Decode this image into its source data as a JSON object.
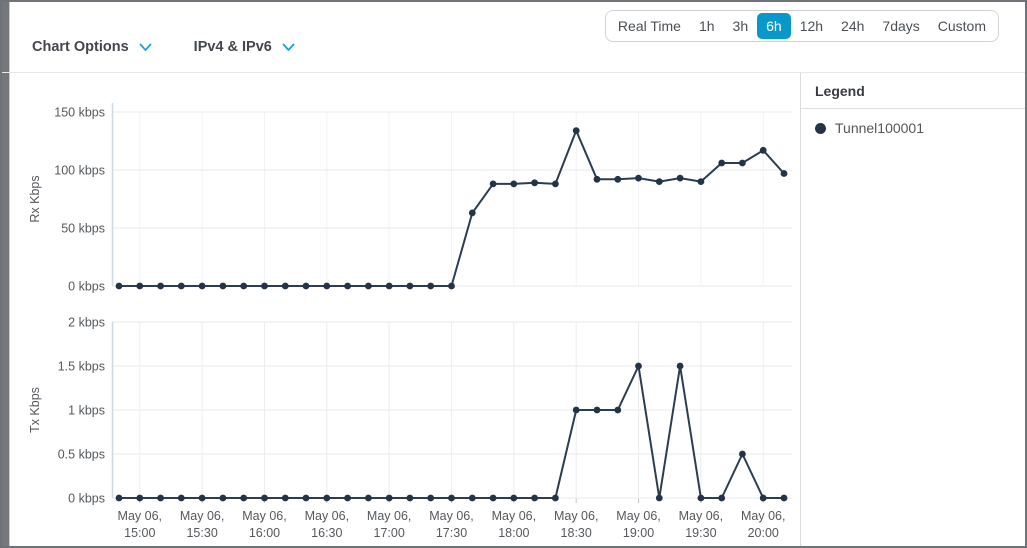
{
  "header": {
    "chart_options_label": "Chart Options",
    "ip_filter_label": "IPv4 & IPv6",
    "time_ranges": [
      "Real Time",
      "1h",
      "3h",
      "6h",
      "12h",
      "24h",
      "7days",
      "Custom"
    ],
    "selected_time_range": "6h"
  },
  "legend": {
    "title": "Legend",
    "items": [
      {
        "label": "Tunnel100001",
        "color": "#233447"
      }
    ]
  },
  "colors": {
    "accent_blue": "#0a98cb",
    "chevron_blue": "#14a6d4",
    "series_line": "#2b3d4f",
    "series_dot": "#233447"
  },
  "chart_data": [
    {
      "type": "line",
      "title": "",
      "ylabel": "Rx Kbps",
      "xlabel": "",
      "ylim": [
        0,
        150
      ],
      "yticks": [
        0,
        50,
        100,
        150
      ],
      "ytick_labels": [
        "0 kbps",
        "50 kbps",
        "100 kbps",
        "150 kbps"
      ],
      "grid": true,
      "legend_position": "right-panel",
      "xtick_prefix": "May 06,",
      "xticks": [
        "15:00",
        "15:30",
        "16:00",
        "16:30",
        "17:00",
        "17:30",
        "18:00",
        "18:30",
        "19:00",
        "19:30",
        "20:00"
      ],
      "x": [
        "14:50",
        "15:00",
        "15:10",
        "15:20",
        "15:30",
        "15:40",
        "15:50",
        "16:00",
        "16:10",
        "16:20",
        "16:30",
        "16:40",
        "16:50",
        "17:00",
        "17:10",
        "17:20",
        "17:30",
        "17:40",
        "17:50",
        "18:00",
        "18:10",
        "18:20",
        "18:30",
        "18:40",
        "18:50",
        "19:00",
        "19:10",
        "19:20",
        "19:30",
        "19:40",
        "19:50",
        "20:00",
        "20:10"
      ],
      "series": [
        {
          "name": "Tunnel100001",
          "values": [
            0,
            0,
            0,
            0,
            0,
            0,
            0,
            0,
            0,
            0,
            0,
            0,
            0,
            0,
            0,
            0,
            0,
            63,
            88,
            88,
            89,
            88,
            134,
            92,
            92,
            93,
            90,
            93,
            90,
            106,
            106,
            117,
            97
          ]
        }
      ]
    },
    {
      "type": "line",
      "title": "",
      "ylabel": "Tx Kbps",
      "xlabel": "",
      "ylim": [
        0,
        2
      ],
      "yticks": [
        0,
        0.5,
        1,
        1.5,
        2
      ],
      "ytick_labels": [
        "0 kbps",
        "0.5 kbps",
        "1 kbps",
        "1.5 kbps",
        "2 kbps"
      ],
      "grid": true,
      "legend_position": "right-panel",
      "xtick_prefix": "May 06,",
      "xticks": [
        "15:00",
        "15:30",
        "16:00",
        "16:30",
        "17:00",
        "17:30",
        "18:00",
        "18:30",
        "19:00",
        "19:30",
        "20:00"
      ],
      "x": [
        "14:50",
        "15:00",
        "15:10",
        "15:20",
        "15:30",
        "15:40",
        "15:50",
        "16:00",
        "16:10",
        "16:20",
        "16:30",
        "16:40",
        "16:50",
        "17:00",
        "17:10",
        "17:20",
        "17:30",
        "17:40",
        "17:50",
        "18:00",
        "18:10",
        "18:20",
        "18:30",
        "18:40",
        "18:50",
        "19:00",
        "19:10",
        "19:20",
        "19:30",
        "19:40",
        "19:50",
        "20:00",
        "20:10"
      ],
      "series": [
        {
          "name": "Tunnel100001",
          "values": [
            0,
            0,
            0,
            0,
            0,
            0,
            0,
            0,
            0,
            0,
            0,
            0,
            0,
            0,
            0,
            0,
            0,
            0,
            0,
            0,
            0,
            0,
            1,
            1,
            1,
            1.5,
            0,
            1.5,
            0,
            0,
            0.5,
            0,
            0
          ]
        }
      ]
    }
  ]
}
